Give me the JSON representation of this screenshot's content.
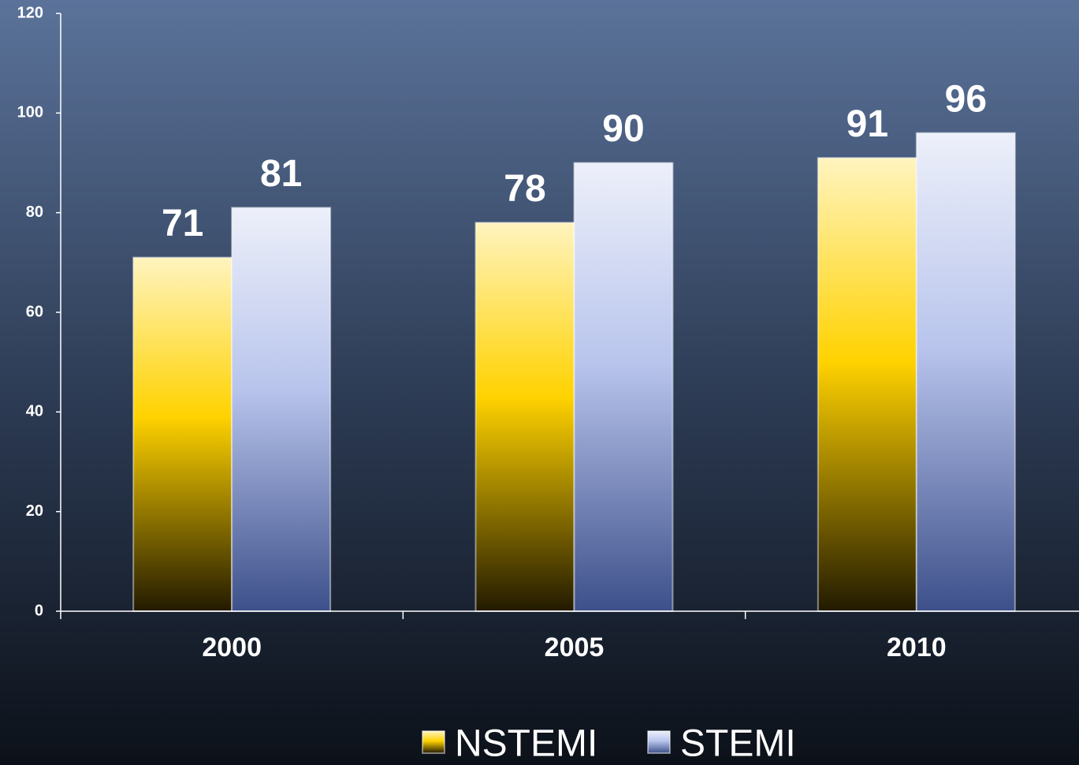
{
  "chart_data": {
    "type": "bar",
    "categories": [
      "2000",
      "2005",
      "2010"
    ],
    "series": [
      {
        "name": "NSTEMI",
        "color": "#ffd200",
        "values": [
          71,
          78,
          91
        ]
      },
      {
        "name": "STEMI",
        "color": "#b8c4ec",
        "values": [
          81,
          90,
          96
        ]
      }
    ],
    "ylim": [
      0,
      120
    ],
    "yticks": [
      0,
      20,
      40,
      60,
      80,
      100,
      120
    ],
    "legend": "bottom"
  }
}
